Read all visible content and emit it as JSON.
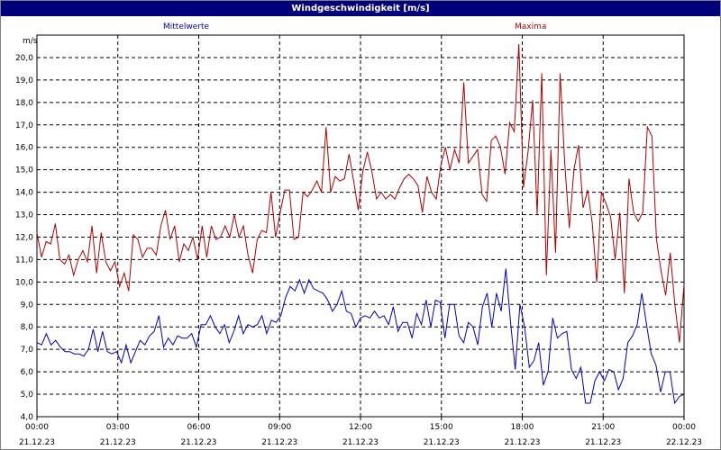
{
  "window": {
    "title": "Windgeschwindigkeit [m/s]"
  },
  "colors": {
    "mittelwerte": "#0000c0",
    "maxima": "#b00000",
    "grid": "#000000",
    "titlebar": "#00007b"
  },
  "chart_data": {
    "type": "line",
    "title": "Windgeschwindigkeit [m/s]",
    "ylabel": "m/s",
    "xlabel": "",
    "ylim": [
      4.0,
      21.0
    ],
    "yticks": [
      "4,0",
      "5,0",
      "6,0",
      "7,0",
      "8,0",
      "9,0",
      "10,0",
      "11,0",
      "12,0",
      "13,0",
      "14,0",
      "15,0",
      "16,0",
      "17,0",
      "18,0",
      "19,0",
      "20,0"
    ],
    "xlim_hours": [
      0,
      24
    ],
    "xticks": [
      {
        "time": "00:00",
        "date": "21.12.23"
      },
      {
        "time": "03:00",
        "date": "21.12.23"
      },
      {
        "time": "06:00",
        "date": "21.12.23"
      },
      {
        "time": "09:00",
        "date": "21.12.23"
      },
      {
        "time": "12:00",
        "date": "21.12.23"
      },
      {
        "time": "15:00",
        "date": "21.12.23"
      },
      {
        "time": "18:00",
        "date": "21.12.23"
      },
      {
        "time": "21:00",
        "date": "21.12.23"
      },
      {
        "time": "00:00",
        "date": "22.12.23"
      }
    ],
    "grid": true,
    "legend_placement": "top",
    "series": [
      {
        "name": "Mittelwerte",
        "color": "#0000c0",
        "values": [
          7.3,
          7.2,
          7.7,
          7.2,
          7.4,
          7.1,
          6.9,
          6.9,
          6.8,
          6.8,
          6.7,
          7.0,
          7.9,
          6.9,
          7.8,
          6.9,
          6.8,
          6.9,
          6.4,
          7.2,
          6.4,
          6.9,
          7.4,
          7.2,
          7.6,
          7.8,
          8.5,
          7.1,
          7.5,
          7.2,
          7.6,
          7.5,
          7.5,
          7.7,
          7.1,
          8.1,
          8.1,
          8.5,
          8.0,
          7.7,
          8.1,
          7.3,
          7.8,
          8.5,
          7.7,
          8.1,
          8.0,
          8.1,
          8.5,
          7.7,
          8.3,
          8.2,
          8.5,
          9.3,
          9.8,
          9.6,
          10.1,
          9.5,
          10.1,
          9.7,
          9.6,
          9.5,
          9.2,
          8.7,
          9.0,
          9.6,
          8.7,
          8.6,
          8.0,
          8.4,
          8.5,
          8.4,
          8.7,
          8.4,
          8.5,
          8.1,
          8.9,
          7.8,
          8.2,
          8.2,
          7.5,
          8.6,
          8.1,
          9.2,
          8.0,
          9.2,
          9.1,
          7.5,
          9.0,
          9.0,
          7.6,
          7.3,
          8.2,
          8.0,
          7.2,
          8.9,
          9.5,
          8.0,
          9.5,
          8.7,
          10.6,
          8.2,
          6.1,
          9.0,
          8.0,
          6.2,
          6.5,
          7.3,
          5.4,
          6.0,
          8.4,
          7.5,
          7.7,
          7.8,
          6.1,
          5.7,
          6.2,
          4.6,
          4.6,
          5.6,
          6.0,
          5.6,
          6.1,
          6.0,
          5.2,
          5.7,
          7.3,
          7.6,
          8.1,
          9.5,
          8.1,
          6.8,
          6.3,
          5.1,
          6.0,
          6.0,
          4.6,
          4.9,
          5.0
        ]
      },
      {
        "name": "Maxima",
        "color": "#b00000",
        "values": [
          12.2,
          11.1,
          11.8,
          11.7,
          12.6,
          11.0,
          10.8,
          11.2,
          10.3,
          11.0,
          11.4,
          10.9,
          12.5,
          10.4,
          12.2,
          10.9,
          10.5,
          10.9,
          9.8,
          10.4,
          9.6,
          12.1,
          11.9,
          11.1,
          11.5,
          11.5,
          11.2,
          12.5,
          13.2,
          11.9,
          12.5,
          10.9,
          11.7,
          11.4,
          12.0,
          11.0,
          12.5,
          11.1,
          12.5,
          11.9,
          12.0,
          12.5,
          12.0,
          13.0,
          12.0,
          12.5,
          11.2,
          10.4,
          11.9,
          12.3,
          12.2,
          14.0,
          12.0,
          13.1,
          14.1,
          14.1,
          11.9,
          12.0,
          14.0,
          13.8,
          14.1,
          14.5,
          14.0,
          16.9,
          14.0,
          14.7,
          14.5,
          14.6,
          15.7,
          14.5,
          13.2,
          14.9,
          15.8,
          14.9,
          13.7,
          14.0,
          13.7,
          13.9,
          13.7,
          14.2,
          14.6,
          14.8,
          14.6,
          14.3,
          13.1,
          14.7,
          14.0,
          13.7,
          15.2,
          16.0,
          15.0,
          15.9,
          15.3,
          18.9,
          15.3,
          15.6,
          15.9,
          13.9,
          13.6,
          16.3,
          16.5,
          16.0,
          14.8,
          17.1,
          16.7,
          20.6,
          14.2,
          15.8,
          18.1,
          13.0,
          19.3,
          10.3,
          15.9,
          11.3,
          19.3,
          15.3,
          12.4,
          15.0,
          16.1,
          13.3,
          14.1,
          12.6,
          10.0,
          14.0,
          13.5,
          12.9,
          11.0,
          13.1,
          9.5,
          14.6,
          13.1,
          12.7,
          13.1,
          16.9,
          16.5,
          11.9,
          10.5,
          9.4,
          11.3,
          9.0,
          7.3,
          9.9
        ]
      }
    ]
  }
}
